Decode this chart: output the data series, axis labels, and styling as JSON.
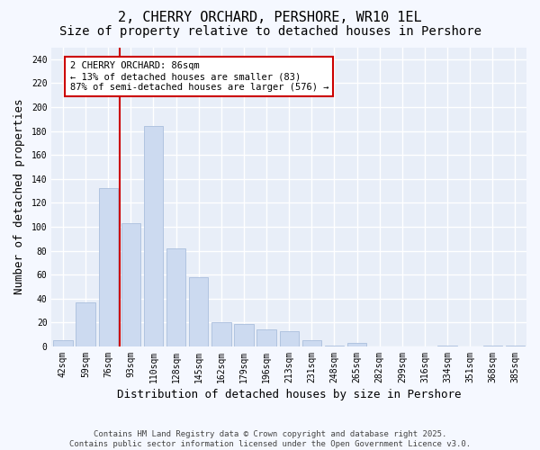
{
  "title": "2, CHERRY ORCHARD, PERSHORE, WR10 1EL",
  "subtitle": "Size of property relative to detached houses in Pershore",
  "xlabel": "Distribution of detached houses by size in Pershore",
  "ylabel": "Number of detached properties",
  "footer": "Contains HM Land Registry data © Crown copyright and database right 2025.\nContains public sector information licensed under the Open Government Licence v3.0.",
  "categories": [
    "42sqm",
    "59sqm",
    "76sqm",
    "93sqm",
    "110sqm",
    "128sqm",
    "145sqm",
    "162sqm",
    "179sqm",
    "196sqm",
    "213sqm",
    "231sqm",
    "248sqm",
    "265sqm",
    "282sqm",
    "299sqm",
    "316sqm",
    "334sqm",
    "351sqm",
    "368sqm",
    "385sqm"
  ],
  "values": [
    5,
    37,
    132,
    103,
    184,
    82,
    58,
    20,
    19,
    14,
    13,
    5,
    1,
    3,
    0,
    0,
    0,
    1,
    0,
    1,
    1
  ],
  "bar_color": "#ccdaf0",
  "bar_edge_color": "#aabedd",
  "vline_color": "#cc0000",
  "vline_x_index": 2.5,
  "annotation_box_text": "2 CHERRY ORCHARD: 86sqm\n← 13% of detached houses are smaller (83)\n87% of semi-detached houses are larger (576) →",
  "box_edge_color": "#cc0000",
  "ylim": [
    0,
    250
  ],
  "yticks": [
    0,
    20,
    40,
    60,
    80,
    100,
    120,
    140,
    160,
    180,
    200,
    220,
    240
  ],
  "fig_bg_color": "#f5f8ff",
  "plot_bg_color": "#e8eef8",
  "grid_color": "#ffffff",
  "title_fontsize": 11,
  "subtitle_fontsize": 10,
  "xlabel_fontsize": 9,
  "ylabel_fontsize": 9,
  "tick_fontsize": 7,
  "annotation_fontsize": 7.5,
  "footer_fontsize": 6.5
}
